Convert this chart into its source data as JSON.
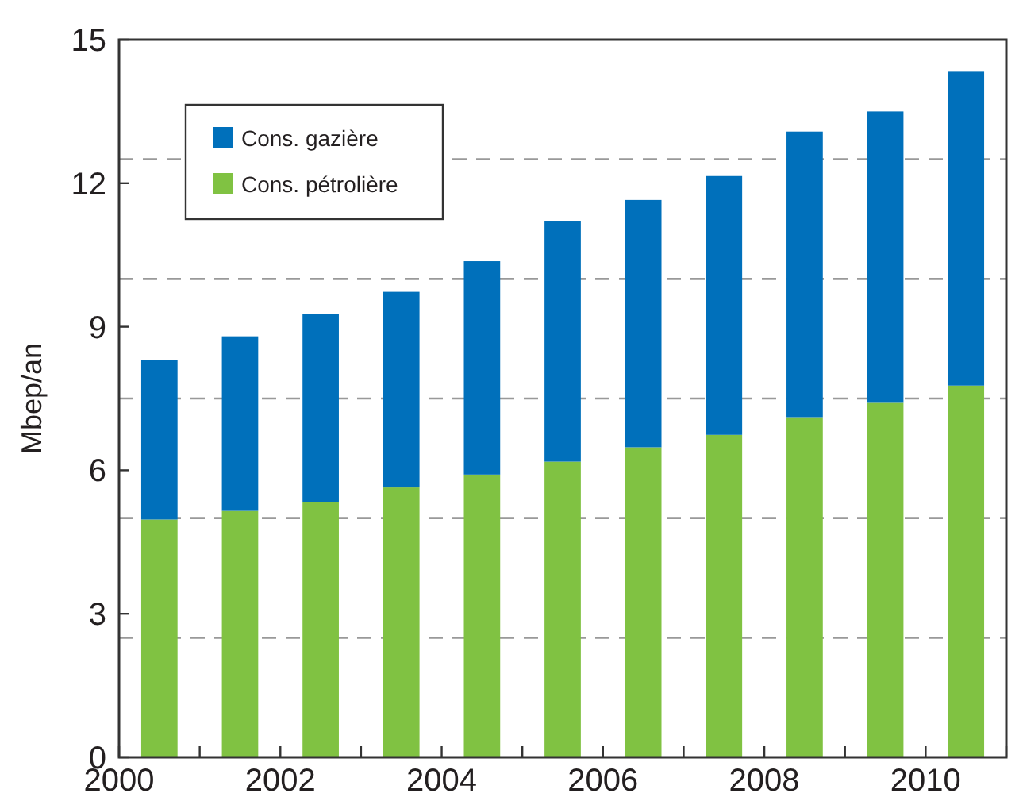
{
  "chart_data": {
    "type": "bar",
    "stacked": true,
    "ylabel": "Mbep/an",
    "x": [
      2000.5,
      2001.5,
      2002.5,
      2003.5,
      2004.5,
      2005.5,
      2006.5,
      2007.5,
      2008.5,
      2009.5,
      2010.5
    ],
    "series": [
      {
        "name": "Cons. pétrolière",
        "color": "#80c242",
        "values": [
          4.97,
          5.15,
          5.33,
          5.64,
          5.91,
          6.18,
          6.48,
          6.74,
          7.11,
          7.41,
          7.77
        ]
      },
      {
        "name": "Cons. gazière",
        "color": "#0070bb",
        "values": [
          3.33,
          3.65,
          3.94,
          4.09,
          4.46,
          5.02,
          5.17,
          5.41,
          5.97,
          6.09,
          6.56
        ]
      }
    ],
    "xlim": [
      2000,
      2011
    ],
    "xticks": [
      2000,
      {
        "value": 2001,
        "label": null
      },
      2002,
      {
        "value": 2003,
        "label": null
      },
      2004,
      {
        "value": 2005,
        "label": null
      },
      2006,
      {
        "value": 2007,
        "label": null
      },
      2008,
      {
        "value": 2009,
        "label": null
      },
      2010,
      {
        "value": 2011,
        "label": null
      }
    ],
    "ylim": [
      0,
      15
    ],
    "yticks": [
      0,
      3,
      6,
      9,
      12,
      15
    ],
    "ref_lines": [
      {
        "axis": "y",
        "value": 2.5,
        "color": "#999999",
        "line_style": "dashed"
      },
      {
        "axis": "y",
        "value": 5,
        "color": "#999999",
        "line_style": "dashed"
      },
      {
        "axis": "y",
        "value": 7.5,
        "color": "#999999",
        "line_style": "dashed"
      },
      {
        "axis": "y",
        "value": 10,
        "color": "#999999",
        "line_style": "dashed"
      },
      {
        "axis": "y",
        "value": 12.5,
        "color": "#999999",
        "line_style": "dashed"
      }
    ],
    "legend": "top left"
  }
}
